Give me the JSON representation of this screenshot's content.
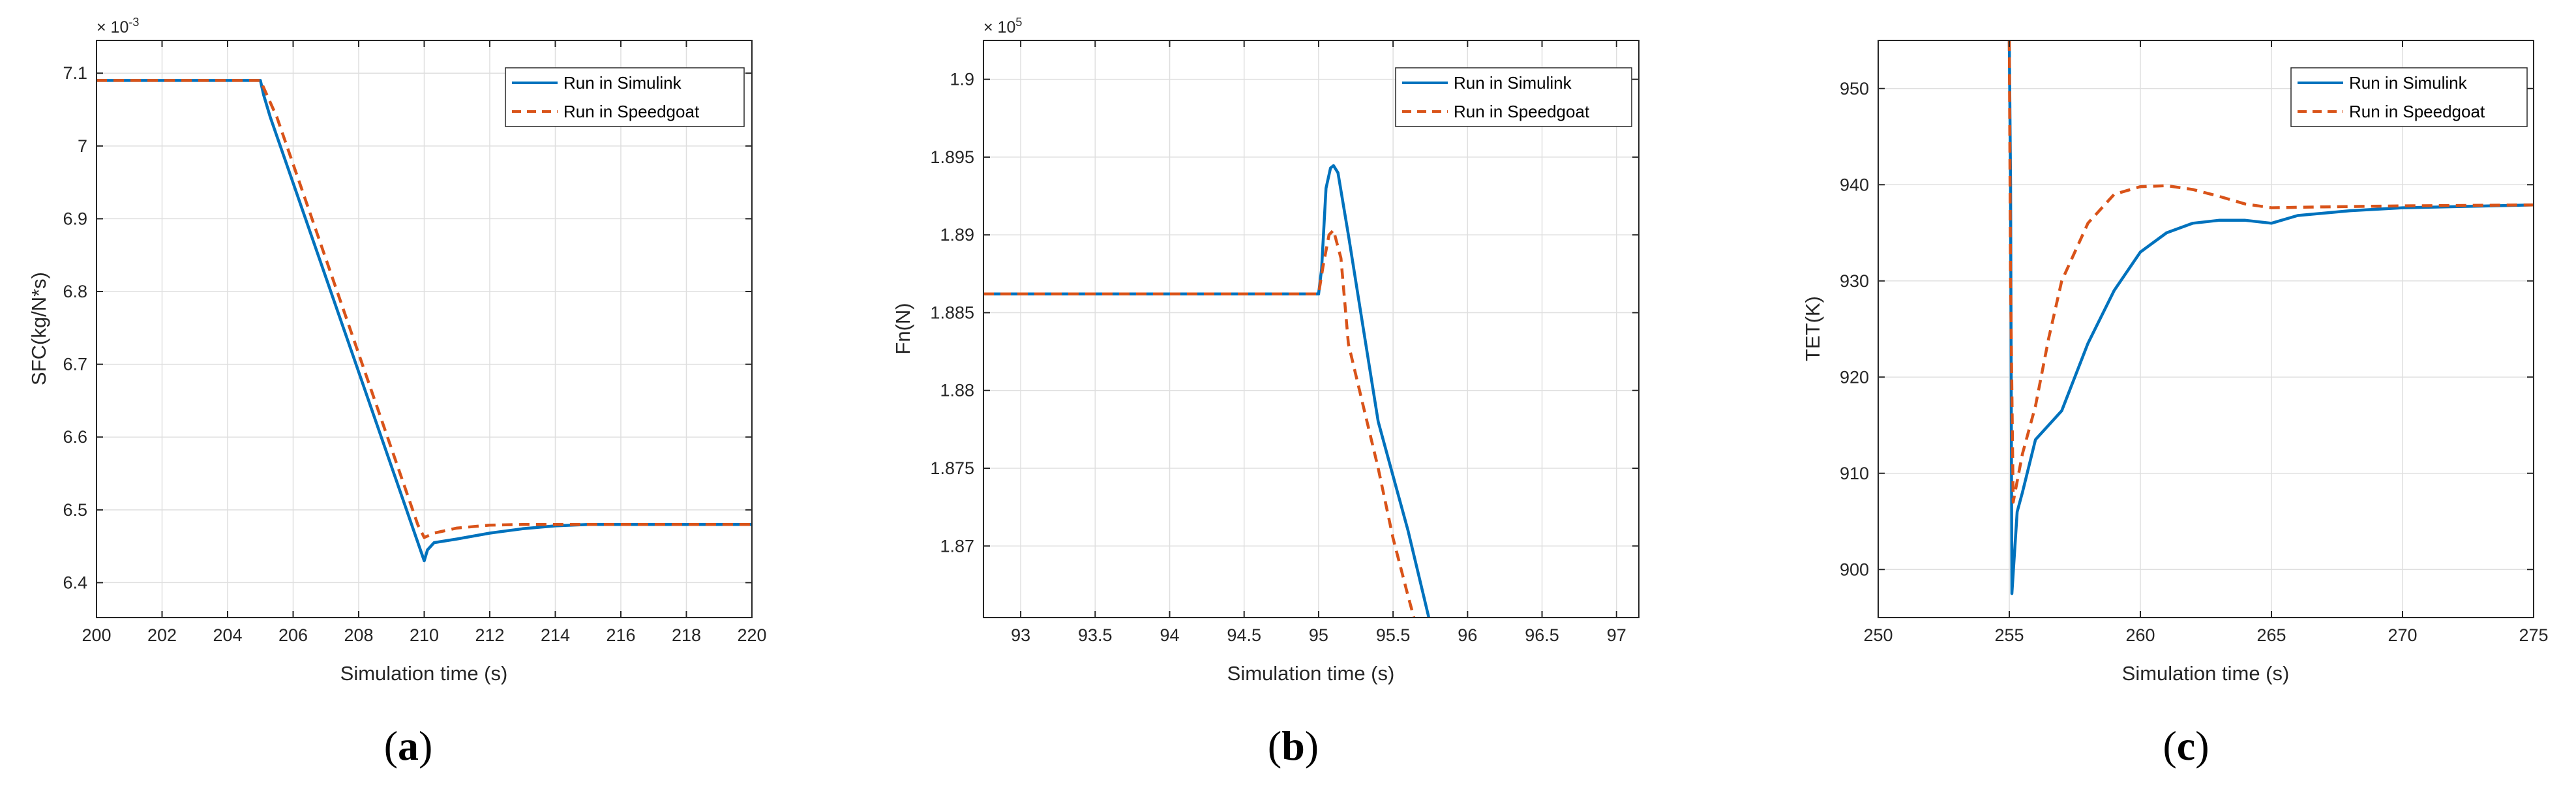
{
  "colors": {
    "simulink": "#0072BD",
    "speedgoat": "#D95319",
    "grid": "#dfdfdf",
    "axis": "#262626"
  },
  "chart_data": [
    {
      "type": "line",
      "caption_letter": "a",
      "xlabel": "Simulation time (s)",
      "ylabel": "SFC(kg/N*s)",
      "exponent": {
        "base": "× 10",
        "power": "-3"
      },
      "xlim": [
        200,
        220
      ],
      "ylim": [
        0.006352,
        0.007145
      ],
      "xticks": [
        200,
        202,
        204,
        206,
        208,
        210,
        212,
        214,
        216,
        218,
        220
      ],
      "xtick_labels": [
        "200",
        "202",
        "204",
        "206",
        "208",
        "210",
        "212",
        "214",
        "216",
        "218",
        "220"
      ],
      "yticks": [
        0.0064,
        0.0065,
        0.0066,
        0.0067,
        0.0068,
        0.0069,
        0.007,
        0.0071
      ],
      "ytick_labels": [
        "6.4",
        "6.5",
        "6.6",
        "6.7",
        "6.8",
        "6.9",
        "7",
        "7.1"
      ],
      "grid": true,
      "legend_position": "top-right",
      "series": [
        {
          "name": "Run in Simulink",
          "style": "solid",
          "points": [
            [
              200,
              0.00709
            ],
            [
              205,
              0.00709
            ],
            [
              205.1,
              0.00707
            ],
            [
              205.3,
              0.00704
            ],
            [
              210,
              0.00643
            ],
            [
              210.1,
              0.006445
            ],
            [
              210.3,
              0.006455
            ],
            [
              211,
              0.00646
            ],
            [
              212,
              0.006468
            ],
            [
              213,
              0.006474
            ],
            [
              214,
              0.006478
            ],
            [
              215,
              0.00648
            ],
            [
              220,
              0.00648
            ]
          ]
        },
        {
          "name": "Run in Speedgoat",
          "style": "dashed",
          "points": [
            [
              200,
              0.00709
            ],
            [
              205,
              0.00709
            ],
            [
              205.2,
              0.00707
            ],
            [
              205.5,
              0.00704
            ],
            [
              209.8,
              0.00648
            ],
            [
              210,
              0.006462
            ],
            [
              210.3,
              0.006468
            ],
            [
              211,
              0.006475
            ],
            [
              212,
              0.006479
            ],
            [
              213,
              0.00648
            ],
            [
              220,
              0.00648
            ]
          ]
        }
      ]
    },
    {
      "type": "line",
      "caption_letter": "b",
      "xlabel": "Simulation time (s)",
      "ylabel": "Fn(N)",
      "exponent": {
        "base": "× 10",
        "power": "5"
      },
      "xlim": [
        92.75,
        97.15
      ],
      "ylim": [
        186540,
        190250
      ],
      "xticks": [
        93,
        93.5,
        94,
        94.5,
        95,
        95.5,
        96,
        96.5,
        97
      ],
      "xtick_labels": [
        "93",
        "93.5",
        "94",
        "94.5",
        "95",
        "95.5",
        "96",
        "96.5",
        "97"
      ],
      "yticks": [
        187000,
        187500,
        188000,
        188500,
        189000,
        189500,
        190000
      ],
      "ytick_labels": [
        "1.87",
        "1.875",
        "1.88",
        "1.885",
        "1.89",
        "1.895",
        "1.9"
      ],
      "grid": true,
      "legend_position": "top-right",
      "series": [
        {
          "name": "Run in Simulink",
          "style": "solid",
          "points": [
            [
              92.75,
              188620
            ],
            [
              95,
              188620
            ],
            [
              95.02,
              188780
            ],
            [
              95.05,
              189300
            ],
            [
              95.08,
              189430
            ],
            [
              95.1,
              189445
            ],
            [
              95.13,
              189400
            ],
            [
              95.2,
              189000
            ],
            [
              95.3,
              188400
            ],
            [
              95.4,
              187800
            ],
            [
              95.5,
              187450
            ],
            [
              95.6,
              187100
            ],
            [
              95.7,
              186700
            ],
            [
              95.74,
              186540
            ]
          ]
        },
        {
          "name": "Run in Speedgoat",
          "style": "dashed",
          "points": [
            [
              92.75,
              188620
            ],
            [
              95,
              188620
            ],
            [
              95.03,
              188800
            ],
            [
              95.07,
              189000
            ],
            [
              95.1,
              189030
            ],
            [
              95.15,
              188850
            ],
            [
              95.2,
              188300
            ],
            [
              95.3,
              187900
            ],
            [
              95.4,
              187500
            ],
            [
              95.5,
              187050
            ],
            [
              95.6,
              186680
            ],
            [
              95.64,
              186540
            ]
          ]
        }
      ]
    },
    {
      "type": "line",
      "caption_letter": "c",
      "xlabel": "Simulation time (s)",
      "ylabel": "TET(K)",
      "exponent": null,
      "xlim": [
        250,
        275
      ],
      "ylim": [
        895,
        955
      ],
      "xticks": [
        250,
        255,
        260,
        265,
        270,
        275
      ],
      "xtick_labels": [
        "250",
        "255",
        "260",
        "265",
        "270",
        "275"
      ],
      "yticks": [
        900,
        910,
        920,
        930,
        940,
        950
      ],
      "ytick_labels": [
        "900",
        "910",
        "920",
        "930",
        "940",
        "950"
      ],
      "grid": true,
      "legend_position": "top-right",
      "series": [
        {
          "name": "Run in Simulink",
          "style": "solid",
          "points": [
            [
              255,
              955
            ],
            [
              255.05,
              940
            ],
            [
              255.1,
              897.5
            ],
            [
              255.3,
              906
            ],
            [
              255.5,
              908
            ],
            [
              256,
              913.5
            ],
            [
              257,
              916.5
            ],
            [
              258,
              923.5
            ],
            [
              259,
              929
            ],
            [
              260,
              933
            ],
            [
              261,
              935
            ],
            [
              262,
              936
            ],
            [
              263,
              936.3
            ],
            [
              264,
              936.3
            ],
            [
              265,
              936
            ],
            [
              266,
              936.8
            ],
            [
              268,
              937.3
            ],
            [
              270,
              937.6
            ],
            [
              275,
              937.9
            ]
          ]
        },
        {
          "name": "Run in Speedgoat",
          "style": "dashed",
          "points": [
            [
              255,
              955
            ],
            [
              255.05,
              930
            ],
            [
              255.15,
              907
            ],
            [
              255.5,
              912
            ],
            [
              256,
              917
            ],
            [
              256.5,
              924
            ],
            [
              257,
              930
            ],
            [
              258,
              936
            ],
            [
              259,
              939
            ],
            [
              260,
              939.8
            ],
            [
              261,
              939.9
            ],
            [
              262,
              939.5
            ],
            [
              263,
              938.8
            ],
            [
              264,
              938
            ],
            [
              265,
              937.6
            ],
            [
              267,
              937.7
            ],
            [
              270,
              937.8
            ],
            [
              275,
              937.9
            ]
          ]
        }
      ]
    }
  ]
}
